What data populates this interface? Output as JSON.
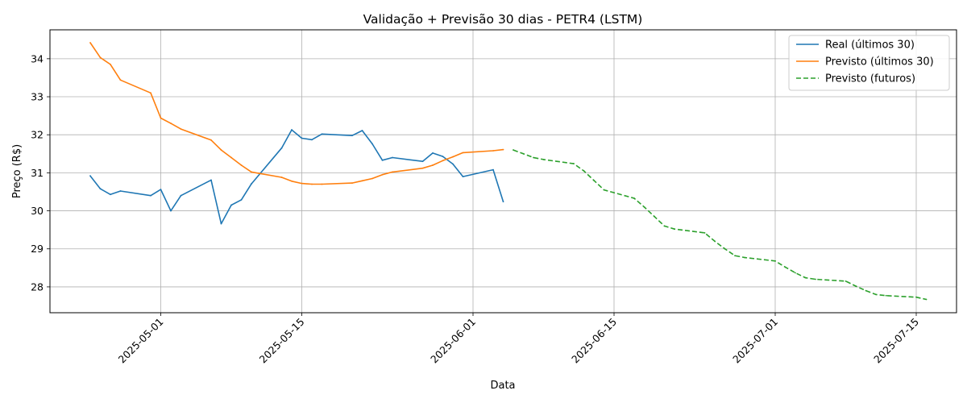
{
  "chart_data": {
    "type": "line",
    "title": "Validação + Previsão 30 dias - PETR4 (LSTM)",
    "xlabel": "Data",
    "ylabel": "Preço (R$)",
    "xlim": [
      "2025-04-20",
      "2025-07-19"
    ],
    "ylim": [
      27.32,
      34.76
    ],
    "grid": true,
    "legend_position": "top-right",
    "x_ticks": [
      "2025-05-01",
      "2025-05-15",
      "2025-06-01",
      "2025-06-15",
      "2025-07-01",
      "2025-07-15"
    ],
    "y_ticks": [
      28,
      29,
      30,
      31,
      32,
      33,
      34
    ],
    "series": [
      {
        "name": "Real (últimos 30)",
        "color": "#1f77b4",
        "style": "solid",
        "x": [
          "2025-04-24",
          "2025-04-25",
          "2025-04-26",
          "2025-04-27",
          "2025-04-30",
          "2025-05-01",
          "2025-05-02",
          "2025-05-03",
          "2025-05-06",
          "2025-05-07",
          "2025-05-08",
          "2025-05-09",
          "2025-05-10",
          "2025-05-13",
          "2025-05-14",
          "2025-05-15",
          "2025-05-16",
          "2025-05-17",
          "2025-05-20",
          "2025-05-21",
          "2025-05-22",
          "2025-05-23",
          "2025-05-24",
          "2025-05-27",
          "2025-05-28",
          "2025-05-29",
          "2025-05-30",
          "2025-05-31",
          "2025-06-03",
          "2025-06-04"
        ],
        "y": [
          30.92,
          30.58,
          30.43,
          30.52,
          30.4,
          30.56,
          30.0,
          30.4,
          30.81,
          29.66,
          30.15,
          30.29,
          30.71,
          31.65,
          32.13,
          31.91,
          31.87,
          32.02,
          31.98,
          32.11,
          31.76,
          31.33,
          31.4,
          31.3,
          31.52,
          31.43,
          31.23,
          30.9,
          31.08,
          30.24
        ]
      },
      {
        "name": "Previsto (últimos 30)",
        "color": "#ff7f0e",
        "style": "solid",
        "x": [
          "2025-04-24",
          "2025-04-25",
          "2025-04-26",
          "2025-04-27",
          "2025-04-30",
          "2025-05-01",
          "2025-05-02",
          "2025-05-03",
          "2025-05-06",
          "2025-05-07",
          "2025-05-08",
          "2025-05-09",
          "2025-05-10",
          "2025-05-13",
          "2025-05-14",
          "2025-05-15",
          "2025-05-16",
          "2025-05-17",
          "2025-05-20",
          "2025-05-21",
          "2025-05-22",
          "2025-05-23",
          "2025-05-24",
          "2025-05-27",
          "2025-05-28",
          "2025-05-29",
          "2025-05-30",
          "2025-05-31",
          "2025-06-03",
          "2025-06-04"
        ],
        "y": [
          34.42,
          34.03,
          33.85,
          33.44,
          33.1,
          32.44,
          32.3,
          32.15,
          31.86,
          31.6,
          31.4,
          31.2,
          31.02,
          30.88,
          30.78,
          30.72,
          30.7,
          30.7,
          30.73,
          30.79,
          30.85,
          30.95,
          31.02,
          31.12,
          31.2,
          31.32,
          31.42,
          31.53,
          31.58,
          31.61
        ]
      },
      {
        "name": "Previsto (futuros)",
        "color": "#2ca02c",
        "style": "dashed",
        "x": [
          "2025-06-05",
          "2025-06-06",
          "2025-06-07",
          "2025-06-08",
          "2025-06-11",
          "2025-06-12",
          "2025-06-13",
          "2025-06-14",
          "2025-06-17",
          "2025-06-18",
          "2025-06-19",
          "2025-06-20",
          "2025-06-21",
          "2025-06-24",
          "2025-06-25",
          "2025-06-26",
          "2025-06-27",
          "2025-06-28",
          "2025-07-01",
          "2025-07-02",
          "2025-07-03",
          "2025-07-04",
          "2025-07-05",
          "2025-07-08",
          "2025-07-09",
          "2025-07-10",
          "2025-07-11",
          "2025-07-12",
          "2025-07-15",
          "2025-07-16"
        ],
        "y": [
          31.6,
          31.5,
          31.4,
          31.35,
          31.24,
          31.05,
          30.8,
          30.55,
          30.33,
          30.1,
          29.85,
          29.6,
          29.52,
          29.42,
          29.2,
          29.0,
          28.82,
          28.77,
          28.68,
          28.52,
          28.37,
          28.24,
          28.2,
          28.15,
          28.02,
          27.9,
          27.8,
          27.77,
          27.73,
          27.67
        ]
      }
    ]
  }
}
